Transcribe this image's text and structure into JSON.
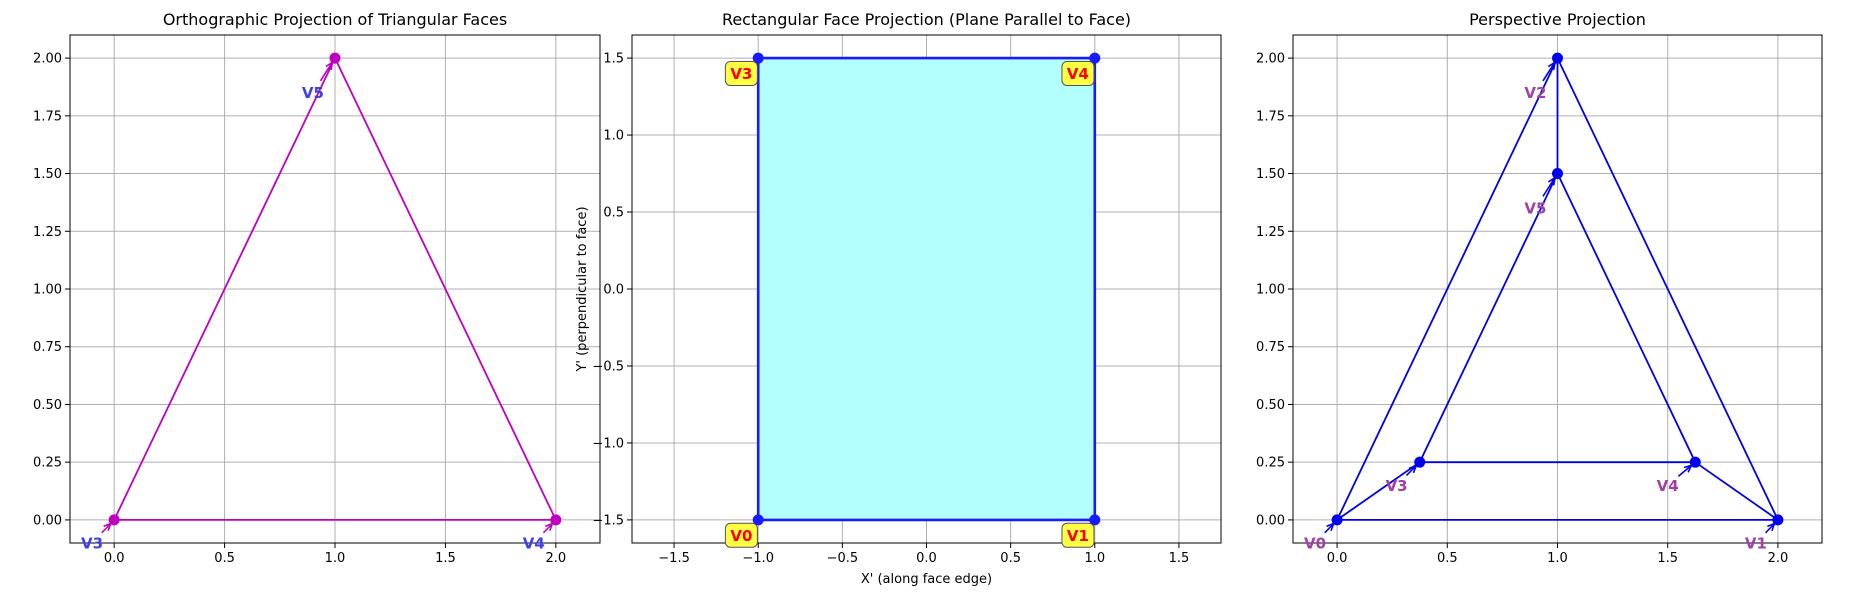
{
  "chart_data": [
    {
      "type": "line",
      "title": "Orthographic Projection of Triangular Faces",
      "xlabel": "",
      "ylabel": "",
      "xlim": [
        -0.2,
        2.2
      ],
      "ylim": [
        -0.1,
        2.1
      ],
      "xticks": [
        "0.0",
        "0.5",
        "1.0",
        "1.5",
        "2.0"
      ],
      "yticks": [
        "0.00",
        "0.25",
        "0.50",
        "0.75",
        "1.00",
        "1.25",
        "1.50",
        "1.75",
        "2.00"
      ],
      "grid": true,
      "line_color": "#bf00bf",
      "label_color": "#4040e8",
      "vertices": [
        {
          "label": "V3",
          "x": 0.0,
          "y": 0.0,
          "text_x": -0.1,
          "text_y": -0.1
        },
        {
          "label": "V4",
          "x": 2.0,
          "y": 0.0,
          "text_x": 1.9,
          "text_y": -0.1
        },
        {
          "label": "V5",
          "x": 1.0,
          "y": 2.0,
          "text_x": 0.9,
          "text_y": 1.85
        }
      ],
      "edges": [
        [
          0,
          1
        ],
        [
          1,
          2
        ],
        [
          2,
          0
        ]
      ]
    },
    {
      "type": "line",
      "title": "Rectangular Face Projection (Plane Parallel to Face)",
      "xlabel": "X' (along face edge)",
      "ylabel": "Y' (perpendicular to face)",
      "xlim": [
        -1.75,
        1.75
      ],
      "ylim": [
        -1.65,
        1.65
      ],
      "xticks": [
        "−1.5",
        "−1.0",
        "−0.5",
        "0.0",
        "0.5",
        "1.0",
        "1.5"
      ],
      "yticks": [
        "−1.5",
        "−1.0",
        "−0.5",
        "0.0",
        "0.5",
        "1.0",
        "1.5"
      ],
      "grid": true,
      "line_color": "#1a1aff",
      "fill_color": "#b3ffff",
      "label_color": "#ff0000",
      "label_box_color": "#ffff44",
      "vertices": [
        {
          "label": "V0",
          "x": -1.0,
          "y": -1.5,
          "text_x": -1.1,
          "text_y": -1.6
        },
        {
          "label": "V1",
          "x": 1.0,
          "y": -1.5,
          "text_x": 0.9,
          "text_y": -1.6
        },
        {
          "label": "V4",
          "x": 1.0,
          "y": 1.5,
          "text_x": 0.9,
          "text_y": 1.4
        },
        {
          "label": "V3",
          "x": -1.0,
          "y": 1.5,
          "text_x": -1.1,
          "text_y": 1.4
        }
      ],
      "edges": [
        [
          0,
          1
        ],
        [
          1,
          2
        ],
        [
          2,
          3
        ],
        [
          3,
          0
        ]
      ]
    },
    {
      "type": "line",
      "title": "Perspective Projection",
      "xlabel": "",
      "ylabel": "",
      "xlim": [
        -0.2,
        2.2
      ],
      "ylim": [
        -0.1,
        2.1
      ],
      "xticks": [
        "0.0",
        "0.5",
        "1.0",
        "1.5",
        "2.0"
      ],
      "yticks": [
        "0.00",
        "0.25",
        "0.50",
        "0.75",
        "1.00",
        "1.25",
        "1.50",
        "1.75",
        "2.00"
      ],
      "grid": true,
      "line_color": "#0000ee",
      "label_color": "#a040a8",
      "vertices": [
        {
          "label": "V0",
          "x": 0.0,
          "y": 0.0,
          "text_x": -0.1,
          "text_y": -0.1
        },
        {
          "label": "V1",
          "x": 2.0,
          "y": 0.0,
          "text_x": 1.9,
          "text_y": -0.1
        },
        {
          "label": "V2",
          "x": 1.0,
          "y": 2.0,
          "text_x": 0.9,
          "text_y": 1.85
        },
        {
          "label": "V3",
          "x": 0.375,
          "y": 0.25,
          "text_x": 0.27,
          "text_y": 0.15
        },
        {
          "label": "V4",
          "x": 1.625,
          "y": 0.25,
          "text_x": 1.5,
          "text_y": 0.15
        },
        {
          "label": "V5",
          "x": 1.0,
          "y": 1.5,
          "text_x": 0.9,
          "text_y": 1.35
        }
      ],
      "edges": [
        [
          0,
          1
        ],
        [
          1,
          2
        ],
        [
          2,
          0
        ],
        [
          3,
          4
        ],
        [
          4,
          5
        ],
        [
          5,
          3
        ],
        [
          0,
          3
        ],
        [
          1,
          4
        ],
        [
          2,
          5
        ]
      ]
    }
  ]
}
